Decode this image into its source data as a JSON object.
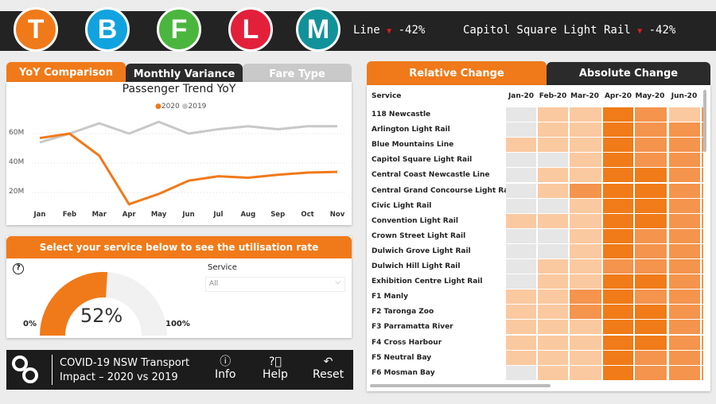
{
  "header": {
    "mode_icons": [
      {
        "letter": "T",
        "color": "#f07a19"
      },
      {
        "letter": "B",
        "color": "#10a3e0"
      },
      {
        "letter": "F",
        "color": "#4bb63e"
      },
      {
        "letter": "L",
        "color": "#e3203a"
      },
      {
        "letter": "M",
        "color": "#11929a"
      }
    ],
    "ticker": [
      {
        "name": "Line",
        "change": "-42%"
      },
      {
        "name": "Capitol Square Light Rail",
        "change": "-42%"
      }
    ]
  },
  "left_tabs": [
    "YoY Comparison",
    "Monthly Variance",
    "Fare Type"
  ],
  "chart_data": {
    "type": "line",
    "title": "Passenger Trend YoY",
    "categories": [
      "Jan",
      "Feb",
      "Mar",
      "Apr",
      "May",
      "Jun",
      "Jul",
      "Aug",
      "Sep",
      "Oct",
      "Nov"
    ],
    "series": [
      {
        "name": "2020",
        "color": "#f07a19",
        "values": [
          57,
          60,
          45,
          12,
          19,
          28,
          31,
          30,
          32,
          33.5,
          34
        ]
      },
      {
        "name": "2019",
        "color": "#c8c8c8",
        "values": [
          54,
          60,
          67,
          60,
          68,
          60,
          63,
          65,
          63,
          65,
          65
        ]
      }
    ],
    "yticks": [
      "20M",
      "40M",
      "60M"
    ],
    "ytick_values": [
      20,
      40,
      60
    ],
    "yunit": "M",
    "grid": true,
    "legend": "top-center"
  },
  "utilisation": {
    "title": "Select your service below to see the utilisation rate",
    "value": 52,
    "value_label": "52%",
    "min_label": "0%",
    "max_label": "100%",
    "service_label": "Service",
    "service_value": "All"
  },
  "footer": {
    "title_line1": "COVID-19 NSW Transport",
    "title_line2": "Impact – 2020 vs 2019",
    "info": "Info",
    "help": "Help",
    "reset": "Reset"
  },
  "heatmap": {
    "tabs": [
      "Relative Change",
      "Absolute Change"
    ],
    "service_header": "Service",
    "columns": [
      "Jan-20",
      "Feb-20",
      "Mar-20",
      "Apr-20",
      "May-20",
      "Jun-20"
    ],
    "colors": [
      "#e6e6e6",
      "#fbc9a0",
      "#f4944d",
      "#f07b18"
    ],
    "rows": [
      {
        "service": "118 Newcastle",
        "levels": [
          0,
          1,
          1,
          3,
          2,
          1
        ]
      },
      {
        "service": "Arlington Light Rail",
        "levels": [
          0,
          1,
          1,
          3,
          2,
          2
        ]
      },
      {
        "service": "Blue Mountains Line",
        "levels": [
          1,
          1,
          1,
          3,
          2,
          2
        ]
      },
      {
        "service": "Capitol Square Light Rail",
        "levels": [
          0,
          0,
          1,
          3,
          2,
          2
        ]
      },
      {
        "service": "Central Coast Newcastle Line",
        "levels": [
          0,
          1,
          1,
          3,
          3,
          2
        ]
      },
      {
        "service": "Central Grand Concourse Light Rail",
        "levels": [
          0,
          1,
          2,
          3,
          3,
          2
        ]
      },
      {
        "service": "Civic Light Rail",
        "levels": [
          0,
          0,
          1,
          3,
          3,
          2
        ]
      },
      {
        "service": "Convention Light Rail",
        "levels": [
          1,
          1,
          1,
          3,
          3,
          2
        ]
      },
      {
        "service": "Crown Street Light Rail",
        "levels": [
          0,
          0,
          1,
          3,
          2,
          2
        ]
      },
      {
        "service": "Dulwich Grove Light Rail",
        "levels": [
          0,
          0,
          1,
          3,
          2,
          2
        ]
      },
      {
        "service": "Dulwich Hill Light Rail",
        "levels": [
          0,
          1,
          1,
          2,
          2,
          2
        ]
      },
      {
        "service": "Exhibition Centre Light Rail",
        "levels": [
          0,
          1,
          1,
          3,
          3,
          2
        ]
      },
      {
        "service": "F1 Manly",
        "levels": [
          1,
          1,
          2,
          3,
          2,
          2
        ]
      },
      {
        "service": "F2 Taronga Zoo",
        "levels": [
          1,
          1,
          2,
          3,
          3,
          2
        ]
      },
      {
        "service": "F3 Parramatta River",
        "levels": [
          1,
          1,
          1,
          3,
          3,
          2
        ]
      },
      {
        "service": "F4 Cross Harbour",
        "levels": [
          1,
          1,
          1,
          3,
          3,
          2
        ]
      },
      {
        "service": "F5 Neutral Bay",
        "levels": [
          1,
          1,
          1,
          3,
          2,
          2
        ]
      },
      {
        "service": "F6 Mosman Bay",
        "levels": [
          0,
          1,
          1,
          3,
          2,
          2
        ]
      }
    ]
  }
}
